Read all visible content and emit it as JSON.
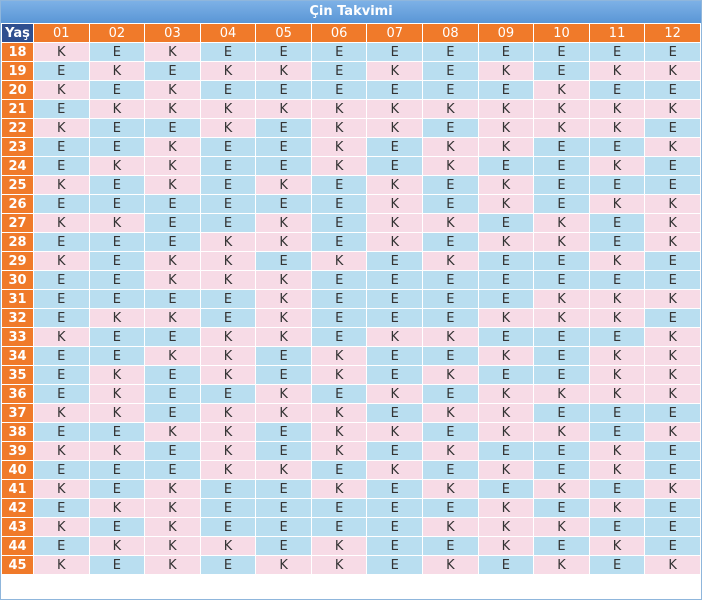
{
  "title": "Çin Takvimi",
  "corner_label": "Yaş",
  "months": [
    "01",
    "02",
    "03",
    "04",
    "05",
    "06",
    "07",
    "08",
    "09",
    "10",
    "11",
    "12"
  ],
  "rows": [
    {
      "age": "18",
      "cells": [
        "K",
        "E",
        "K",
        "E",
        "E",
        "E",
        "E",
        "E",
        "E",
        "E",
        "E",
        "E"
      ]
    },
    {
      "age": "19",
      "cells": [
        "E",
        "K",
        "E",
        "K",
        "K",
        "E",
        "K",
        "E",
        "K",
        "E",
        "K",
        "K"
      ]
    },
    {
      "age": "20",
      "cells": [
        "K",
        "E",
        "K",
        "E",
        "E",
        "E",
        "E",
        "E",
        "E",
        "K",
        "E",
        "E"
      ]
    },
    {
      "age": "21",
      "cells": [
        "E",
        "K",
        "K",
        "K",
        "K",
        "K",
        "K",
        "K",
        "K",
        "K",
        "K",
        "K"
      ]
    },
    {
      "age": "22",
      "cells": [
        "K",
        "E",
        "E",
        "K",
        "E",
        "K",
        "K",
        "E",
        "K",
        "K",
        "K",
        "E"
      ]
    },
    {
      "age": "23",
      "cells": [
        "E",
        "E",
        "K",
        "E",
        "E",
        "K",
        "E",
        "K",
        "K",
        "E",
        "E",
        "K"
      ]
    },
    {
      "age": "24",
      "cells": [
        "E",
        "K",
        "K",
        "E",
        "E",
        "K",
        "E",
        "K",
        "E",
        "E",
        "K",
        "E"
      ]
    },
    {
      "age": "25",
      "cells": [
        "K",
        "E",
        "K",
        "E",
        "K",
        "E",
        "K",
        "E",
        "K",
        "E",
        "E",
        "E"
      ]
    },
    {
      "age": "26",
      "cells": [
        "E",
        "E",
        "E",
        "E",
        "E",
        "E",
        "K",
        "E",
        "K",
        "E",
        "K",
        "K"
      ]
    },
    {
      "age": "27",
      "cells": [
        "K",
        "K",
        "E",
        "E",
        "K",
        "E",
        "K",
        "K",
        "E",
        "K",
        "E",
        "K"
      ]
    },
    {
      "age": "28",
      "cells": [
        "E",
        "E",
        "E",
        "K",
        "K",
        "E",
        "K",
        "E",
        "K",
        "K",
        "E",
        "K"
      ]
    },
    {
      "age": "29",
      "cells": [
        "K",
        "E",
        "K",
        "K",
        "E",
        "K",
        "E",
        "K",
        "E",
        "E",
        "K",
        "E"
      ]
    },
    {
      "age": "30",
      "cells": [
        "E",
        "E",
        "K",
        "K",
        "K",
        "E",
        "E",
        "E",
        "E",
        "E",
        "E",
        "E"
      ]
    },
    {
      "age": "31",
      "cells": [
        "E",
        "E",
        "E",
        "E",
        "K",
        "E",
        "E",
        "E",
        "E",
        "K",
        "K",
        "K"
      ]
    },
    {
      "age": "32",
      "cells": [
        "E",
        "K",
        "K",
        "E",
        "K",
        "E",
        "E",
        "E",
        "K",
        "K",
        "K",
        "E"
      ]
    },
    {
      "age": "33",
      "cells": [
        "K",
        "E",
        "E",
        "K",
        "K",
        "E",
        "K",
        "K",
        "E",
        "E",
        "E",
        "K"
      ]
    },
    {
      "age": "34",
      "cells": [
        "E",
        "E",
        "K",
        "K",
        "E",
        "K",
        "E",
        "E",
        "K",
        "E",
        "K",
        "K"
      ]
    },
    {
      "age": "35",
      "cells": [
        "E",
        "K",
        "E",
        "K",
        "E",
        "K",
        "E",
        "K",
        "E",
        "E",
        "K",
        "K"
      ]
    },
    {
      "age": "36",
      "cells": [
        "E",
        "K",
        "E",
        "E",
        "K",
        "E",
        "K",
        "E",
        "K",
        "K",
        "K",
        "K"
      ]
    },
    {
      "age": "37",
      "cells": [
        "K",
        "K",
        "E",
        "K",
        "K",
        "K",
        "E",
        "K",
        "K",
        "E",
        "E",
        "E"
      ]
    },
    {
      "age": "38",
      "cells": [
        "E",
        "E",
        "K",
        "K",
        "E",
        "K",
        "K",
        "E",
        "K",
        "K",
        "E",
        "K"
      ]
    },
    {
      "age": "39",
      "cells": [
        "K",
        "K",
        "E",
        "K",
        "E",
        "K",
        "E",
        "K",
        "E",
        "E",
        "K",
        "E"
      ]
    },
    {
      "age": "40",
      "cells": [
        "E",
        "E",
        "E",
        "K",
        "K",
        "E",
        "K",
        "E",
        "K",
        "E",
        "K",
        "E"
      ]
    },
    {
      "age": "41",
      "cells": [
        "K",
        "E",
        "K",
        "E",
        "E",
        "K",
        "E",
        "K",
        "E",
        "K",
        "E",
        "K"
      ]
    },
    {
      "age": "42",
      "cells": [
        "E",
        "K",
        "K",
        "E",
        "E",
        "E",
        "E",
        "E",
        "K",
        "E",
        "K",
        "E"
      ]
    },
    {
      "age": "43",
      "cells": [
        "K",
        "E",
        "K",
        "E",
        "E",
        "E",
        "E",
        "K",
        "K",
        "K",
        "E",
        "E"
      ]
    },
    {
      "age": "44",
      "cells": [
        "E",
        "K",
        "K",
        "K",
        "E",
        "K",
        "E",
        "E",
        "K",
        "E",
        "K",
        "E"
      ]
    },
    {
      "age": "45",
      "cells": [
        "K",
        "E",
        "K",
        "E",
        "K",
        "K",
        "E",
        "K",
        "E",
        "K",
        "E",
        "K"
      ]
    }
  ]
}
